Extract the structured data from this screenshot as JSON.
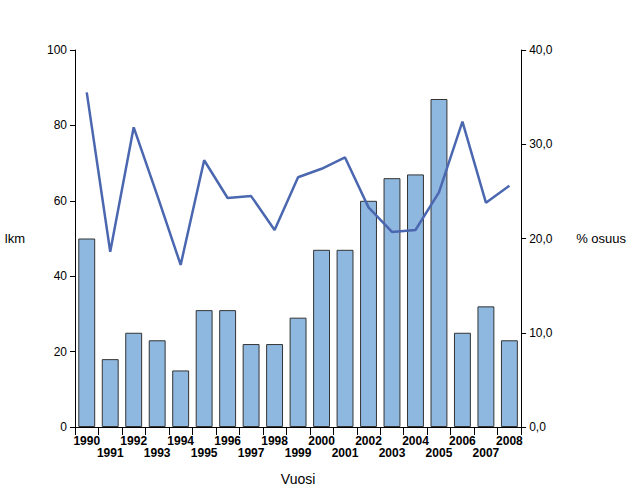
{
  "chart_data": {
    "type": "bar",
    "x_label": "Vuosi",
    "y_label": "lkm",
    "y2_label": "% osuus",
    "categories": [
      "1990",
      "1991",
      "1992",
      "1993",
      "1994",
      "1995",
      "1996",
      "1997",
      "1998",
      "1999",
      "2000",
      "2001",
      "2002",
      "2003",
      "2004",
      "2005",
      "2006",
      "2007",
      "2008"
    ],
    "series": [
      {
        "name": "lkm",
        "type": "bar",
        "color": "#8fb8e0",
        "values": [
          50,
          18,
          25,
          23,
          15,
          31,
          31,
          22,
          22,
          29,
          47,
          47,
          60,
          66,
          67,
          87,
          25,
          32,
          23
        ]
      },
      {
        "name": "% osuus",
        "type": "line",
        "axis": "y2",
        "color": "#4a67b0",
        "marker": "none",
        "line_style": "solid",
        "values": [
          35.5,
          18.6,
          31.8,
          24.6,
          17.2,
          28.3,
          24.3,
          24.5,
          20.9,
          26.5,
          27.4,
          28.6,
          23.3,
          20.7,
          20.9,
          24.9,
          32.4,
          23.8,
          25.6
        ]
      }
    ],
    "ylim": [
      0,
      100
    ],
    "yticks": [
      0,
      20,
      40,
      60,
      80,
      100
    ],
    "y2lim": [
      0,
      40
    ],
    "y2ticks": [
      {
        "value": 0,
        "label": "0,0"
      },
      {
        "value": 10,
        "label": "10,0"
      },
      {
        "value": 20,
        "label": "20,0"
      },
      {
        "value": 30,
        "label": "30,0"
      },
      {
        "value": 40,
        "label": "40,0"
      }
    ],
    "grid": false
  }
}
